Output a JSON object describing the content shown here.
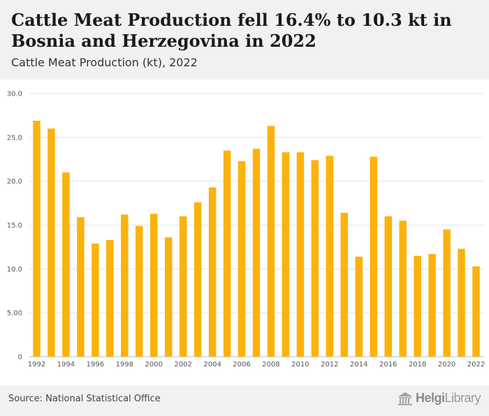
{
  "header": {
    "title": "Cattle Meat Production fell 16.4% to 10.3 kt in Bosnia and Herzegovina in 2022",
    "subtitle": "Cattle Meat Production (kt), 2022"
  },
  "footer": {
    "source": "Source: National Statistical Office",
    "brand_prefix": "Helgi",
    "brand_suffix": "Library",
    "brand_icon": "library-building-icon"
  },
  "colors": {
    "bar": "#FBB20C",
    "grid": "#e3e3e3",
    "header_bg": "#f1f1f1"
  },
  "chart_data": {
    "type": "bar",
    "title": "Cattle Meat Production (kt), 2022",
    "xlabel": "",
    "ylabel": "",
    "ylim": [
      0,
      30
    ],
    "yticks": [
      "0",
      "5.00",
      "10.0",
      "15.0",
      "20.0",
      "25.0",
      "30.0"
    ],
    "ytick_values": [
      0,
      5,
      10,
      15,
      20,
      25,
      30
    ],
    "grid": true,
    "categories": [
      "1992",
      "1993",
      "1994",
      "1995",
      "1996",
      "1997",
      "1998",
      "1999",
      "2000",
      "2001",
      "2002",
      "2003",
      "2004",
      "2005",
      "2006",
      "2007",
      "2008",
      "2009",
      "2010",
      "2011",
      "2012",
      "2013",
      "2014",
      "2015",
      "2016",
      "2017",
      "2018",
      "2019",
      "2020",
      "2021",
      "2022"
    ],
    "xtick_labels": [
      "1992",
      "1994",
      "1996",
      "1998",
      "2000",
      "2002",
      "2004",
      "2006",
      "2008",
      "2010",
      "2012",
      "2014",
      "2016",
      "2018",
      "2020",
      "2022"
    ],
    "values": [
      26.9,
      26.0,
      21.0,
      15.9,
      12.9,
      13.3,
      16.2,
      14.9,
      16.3,
      13.6,
      16.0,
      17.6,
      19.3,
      23.5,
      22.3,
      23.7,
      26.3,
      23.3,
      23.3,
      22.4,
      22.9,
      16.4,
      11.4,
      22.8,
      16.0,
      15.5,
      11.5,
      11.7,
      14.5,
      12.3,
      10.3
    ]
  }
}
